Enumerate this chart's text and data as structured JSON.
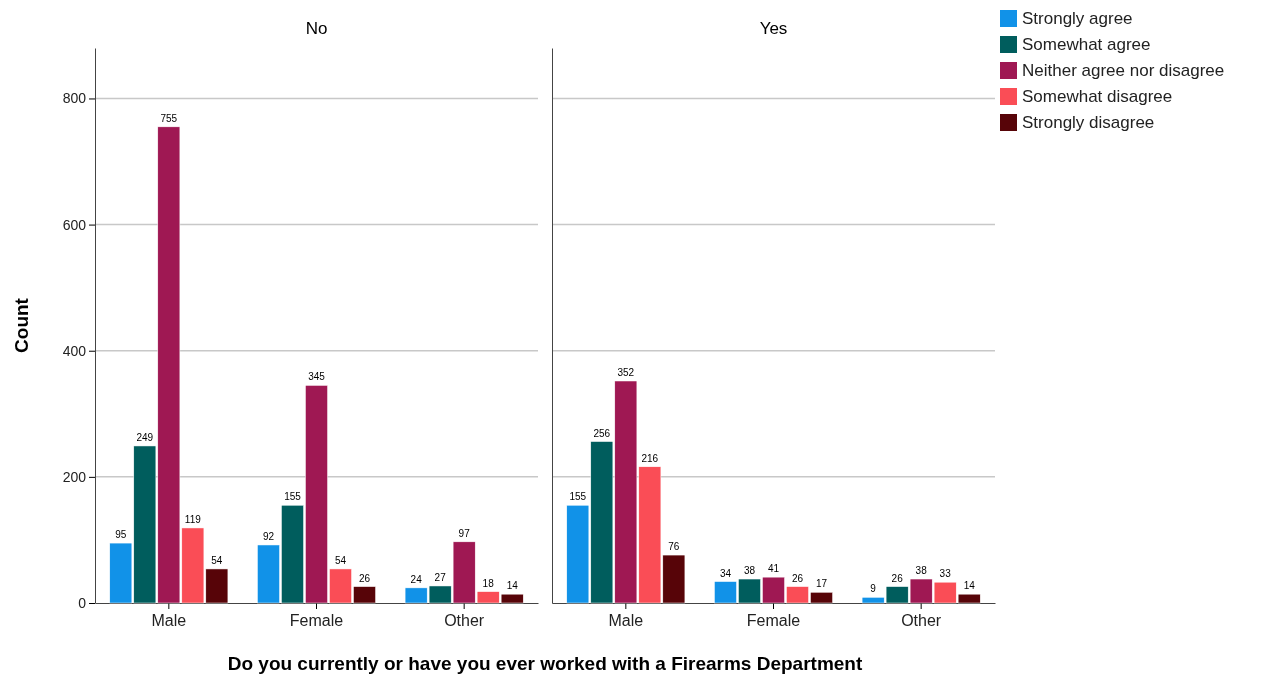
{
  "chart_data": [
    {
      "type": "bar",
      "title": "No",
      "ylabel": "Count",
      "xlabel": "Do you currently or have you ever worked with a Firearms Department",
      "categories": [
        "Male",
        "Female",
        "Other"
      ],
      "ylim": [
        0,
        880
      ],
      "yticks": [
        0,
        200,
        400,
        600,
        800
      ],
      "grid": "y",
      "data_labels": true,
      "legend": false,
      "series": [
        {
          "color": "#1192e8",
          "values": [
            95,
            92,
            24
          ]
        },
        {
          "color": "#005d5d",
          "values": [
            249,
            155,
            27
          ]
        },
        {
          "color": "#9f1853",
          "values": [
            755,
            345,
            97
          ]
        },
        {
          "color": "#fa4d56",
          "values": [
            119,
            54,
            18
          ]
        },
        {
          "color": "#570408",
          "values": [
            54,
            26,
            14
          ]
        }
      ]
    },
    {
      "type": "bar",
      "title": "Yes",
      "categories": [
        "Male",
        "Female",
        "Other"
      ],
      "ylim": [
        0,
        880
      ],
      "yticks": [
        0,
        200,
        400,
        600,
        800
      ],
      "grid": "y",
      "data_labels": true,
      "legend": "right",
      "tick_labels": "x",
      "series": [
        {
          "name": "Strongly agree",
          "color": "#1192e8",
          "values": [
            155,
            34,
            9
          ]
        },
        {
          "name": "Somewhat agree",
          "color": "#005d5d",
          "values": [
            256,
            38,
            26
          ]
        },
        {
          "name": "Neither agree nor disagree",
          "color": "#9f1853",
          "values": [
            352,
            41,
            38
          ]
        },
        {
          "name": "Somewhat disagree",
          "color": "#fa4d56",
          "values": [
            216,
            26,
            33
          ]
        },
        {
          "name": "Strongly disagree",
          "color": "#570408",
          "values": [
            76,
            17,
            14
          ]
        }
      ]
    }
  ]
}
